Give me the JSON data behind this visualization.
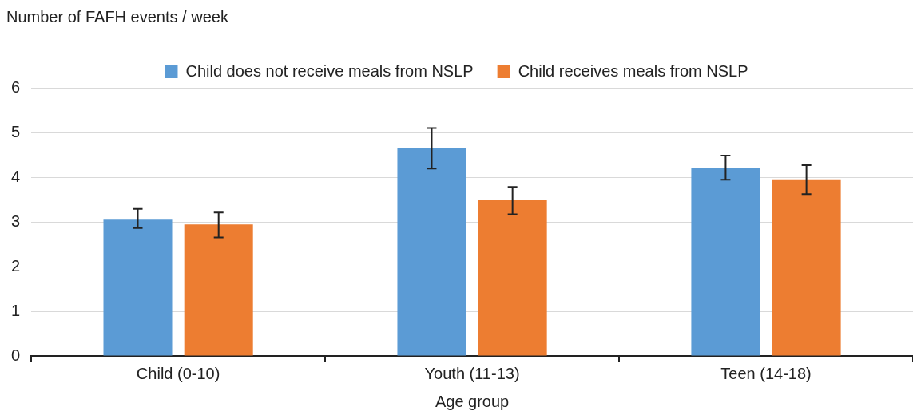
{
  "chart_data": {
    "type": "bar",
    "ylabel": "Number of FAFH events / week",
    "xlabel": "Age group",
    "categories": [
      "Child (0-10)",
      "Youth (11-13)",
      "Teen (14-18)"
    ],
    "series": [
      {
        "name": "Child does not receive meals from NSLP",
        "color": "#5b9bd5",
        "values": [
          3.05,
          4.66,
          4.21
        ],
        "errors": [
          [
            2.86,
            3.29
          ],
          [
            4.19,
            5.1
          ],
          [
            3.94,
            4.48
          ]
        ]
      },
      {
        "name": "Child receives meals from NSLP",
        "color": "#ed7d31",
        "values": [
          2.94,
          3.48,
          3.95
        ],
        "errors": [
          [
            2.65,
            3.21
          ],
          [
            3.17,
            3.78
          ],
          [
            3.62,
            4.27
          ]
        ]
      }
    ],
    "ylim": [
      0,
      6
    ],
    "yticks": [
      0,
      1,
      2,
      3,
      4,
      5,
      6
    ],
    "grid": "y",
    "legend": "top"
  }
}
